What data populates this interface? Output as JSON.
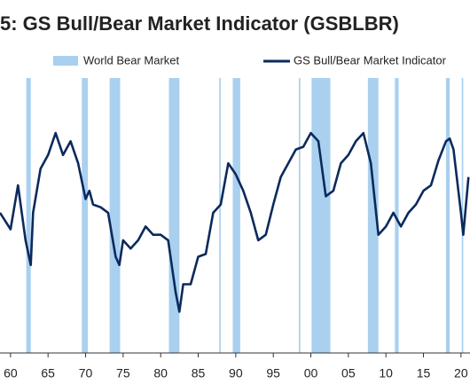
{
  "chart_data": {
    "type": "line",
    "title": "5: GS Bull/Bear Market Indicator (GSBLBR)",
    "series": [
      {
        "name": "World Bear Market",
        "color": "#a9d0ef",
        "type": "band",
        "ranges": [
          [
            1962.1,
            1962.7
          ],
          [
            1969.5,
            1970.3
          ],
          [
            1973.2,
            1974.6
          ],
          [
            1981.1,
            1982.5
          ],
          [
            1987.8,
            1988.0
          ],
          [
            1989.6,
            1990.6
          ],
          [
            1998.4,
            1998.6
          ],
          [
            2000.1,
            2002.6
          ],
          [
            2007.6,
            2009.0
          ],
          [
            2011.2,
            2011.7
          ],
          [
            2018.0,
            2018.5
          ],
          [
            2020.1,
            2020.3
          ]
        ]
      },
      {
        "name": "GS Bull/Bear Market Indicator",
        "color": "#0b2a5c",
        "x": [
          1958.6,
          1960,
          1961,
          1962,
          1962.7,
          1963,
          1964,
          1965,
          1966,
          1967,
          1968,
          1969,
          1970,
          1970.5,
          1971,
          1972,
          1973,
          1974,
          1974.5,
          1975,
          1976,
          1977,
          1978,
          1979,
          1980,
          1981,
          1982,
          1982.5,
          1983,
          1984,
          1985,
          1986,
          1987,
          1988,
          1989,
          1990,
          1991,
          1992,
          1993,
          1994,
          1995,
          1996,
          1997,
          1998,
          1999,
          2000,
          2001,
          2002,
          2003,
          2004,
          2005,
          2006,
          2007,
          2008,
          2009,
          2010,
          2011,
          2012,
          2013,
          2014,
          2015,
          2016,
          2017,
          2018,
          2018.5,
          2019,
          2020,
          2020.3,
          2021
        ],
        "values": [
          0.51,
          0.45,
          0.61,
          0.41,
          0.32,
          0.51,
          0.67,
          0.72,
          0.8,
          0.72,
          0.77,
          0.69,
          0.56,
          0.59,
          0.54,
          0.53,
          0.51,
          0.35,
          0.32,
          0.41,
          0.38,
          0.41,
          0.46,
          0.43,
          0.43,
          0.41,
          0.22,
          0.15,
          0.25,
          0.25,
          0.35,
          0.36,
          0.51,
          0.54,
          0.69,
          0.65,
          0.59,
          0.51,
          0.41,
          0.43,
          0.54,
          0.64,
          0.69,
          0.74,
          0.75,
          0.8,
          0.77,
          0.57,
          0.59,
          0.69,
          0.72,
          0.77,
          0.8,
          0.69,
          0.43,
          0.46,
          0.51,
          0.46,
          0.51,
          0.54,
          0.59,
          0.61,
          0.7,
          0.77,
          0.78,
          0.74,
          0.51,
          0.43,
          0.64
        ]
      }
    ],
    "xlim": [
      1958.6,
      2021.2
    ],
    "xticks": [
      {
        "value": 1960,
        "label": "60"
      },
      {
        "value": 1965,
        "label": "65"
      },
      {
        "value": 1970,
        "label": "70"
      },
      {
        "value": 1975,
        "label": "75"
      },
      {
        "value": 1980,
        "label": "80"
      },
      {
        "value": 1985,
        "label": "85"
      },
      {
        "value": 1990,
        "label": "90"
      },
      {
        "value": 1995,
        "label": "95"
      },
      {
        "value": 2000,
        "label": "00"
      },
      {
        "value": 2005,
        "label": "05"
      },
      {
        "value": 2010,
        "label": "10"
      },
      {
        "value": 2015,
        "label": "15"
      },
      {
        "value": 2020,
        "label": "20"
      }
    ],
    "ylim": [
      0,
      1
    ]
  }
}
